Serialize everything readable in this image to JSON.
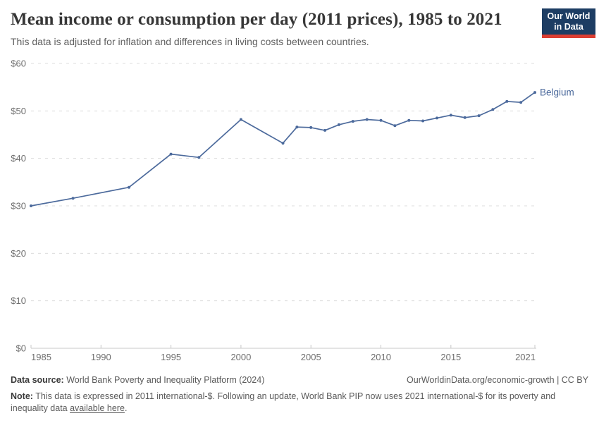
{
  "header": {
    "title": "Mean income or consumption per day (2011 prices), 1985 to 2021",
    "subtitle": "This data is adjusted for inflation and differences in living costs between countries."
  },
  "logo": {
    "line1": "Our World",
    "line2": "in Data",
    "bg_color": "#1d3d63",
    "stripe_color": "#dc3e32"
  },
  "chart_data": {
    "type": "line",
    "title": "Mean income or consumption per day (2011 prices), 1985 to 2021",
    "xlabel": "",
    "ylabel": "",
    "xlim": [
      1985,
      2021
    ],
    "ylim": [
      0,
      60
    ],
    "grid": true,
    "legend_position": "end-of-line",
    "xticks": [
      1985,
      1990,
      1995,
      2000,
      2005,
      2010,
      2015,
      2021
    ],
    "yticks": [
      0,
      10,
      20,
      30,
      40,
      50,
      60
    ],
    "ytick_labels": [
      "$0",
      "$10",
      "$20",
      "$30",
      "$40",
      "$50",
      "$60"
    ],
    "series": [
      {
        "name": "Belgium",
        "color": "#4C6A9C",
        "x": [
          1985,
          1988,
          1992,
          1995,
          1997,
          2000,
          2003,
          2004,
          2005,
          2006,
          2007,
          2008,
          2009,
          2010,
          2011,
          2012,
          2013,
          2014,
          2015,
          2016,
          2017,
          2018,
          2019,
          2020,
          2021
        ],
        "values": [
          30.0,
          31.6,
          33.9,
          40.9,
          40.2,
          48.2,
          43.2,
          46.6,
          46.5,
          45.9,
          47.1,
          47.8,
          48.2,
          48.0,
          46.9,
          48.0,
          47.9,
          48.5,
          49.1,
          48.6,
          49.0,
          50.3,
          52.0,
          51.8,
          53.9
        ]
      }
    ],
    "colors": {
      "grid": "#dcdcdc",
      "axis": "#c8c8c8",
      "tick_label": "#6e6e6e"
    }
  },
  "footer": {
    "source_label": "Data source:",
    "source_text": " World Bank Poverty and Inequality Platform (2024)",
    "rights_text": "OurWorldinData.org/economic-growth | CC BY",
    "note_label": "Note:",
    "note_text_1": " This data is expressed in 2011 international-$. Following an update, World Bank PIP now uses 2021 international-$ for its poverty and inequality data ",
    "note_link": "available here",
    "note_text_2": "."
  }
}
